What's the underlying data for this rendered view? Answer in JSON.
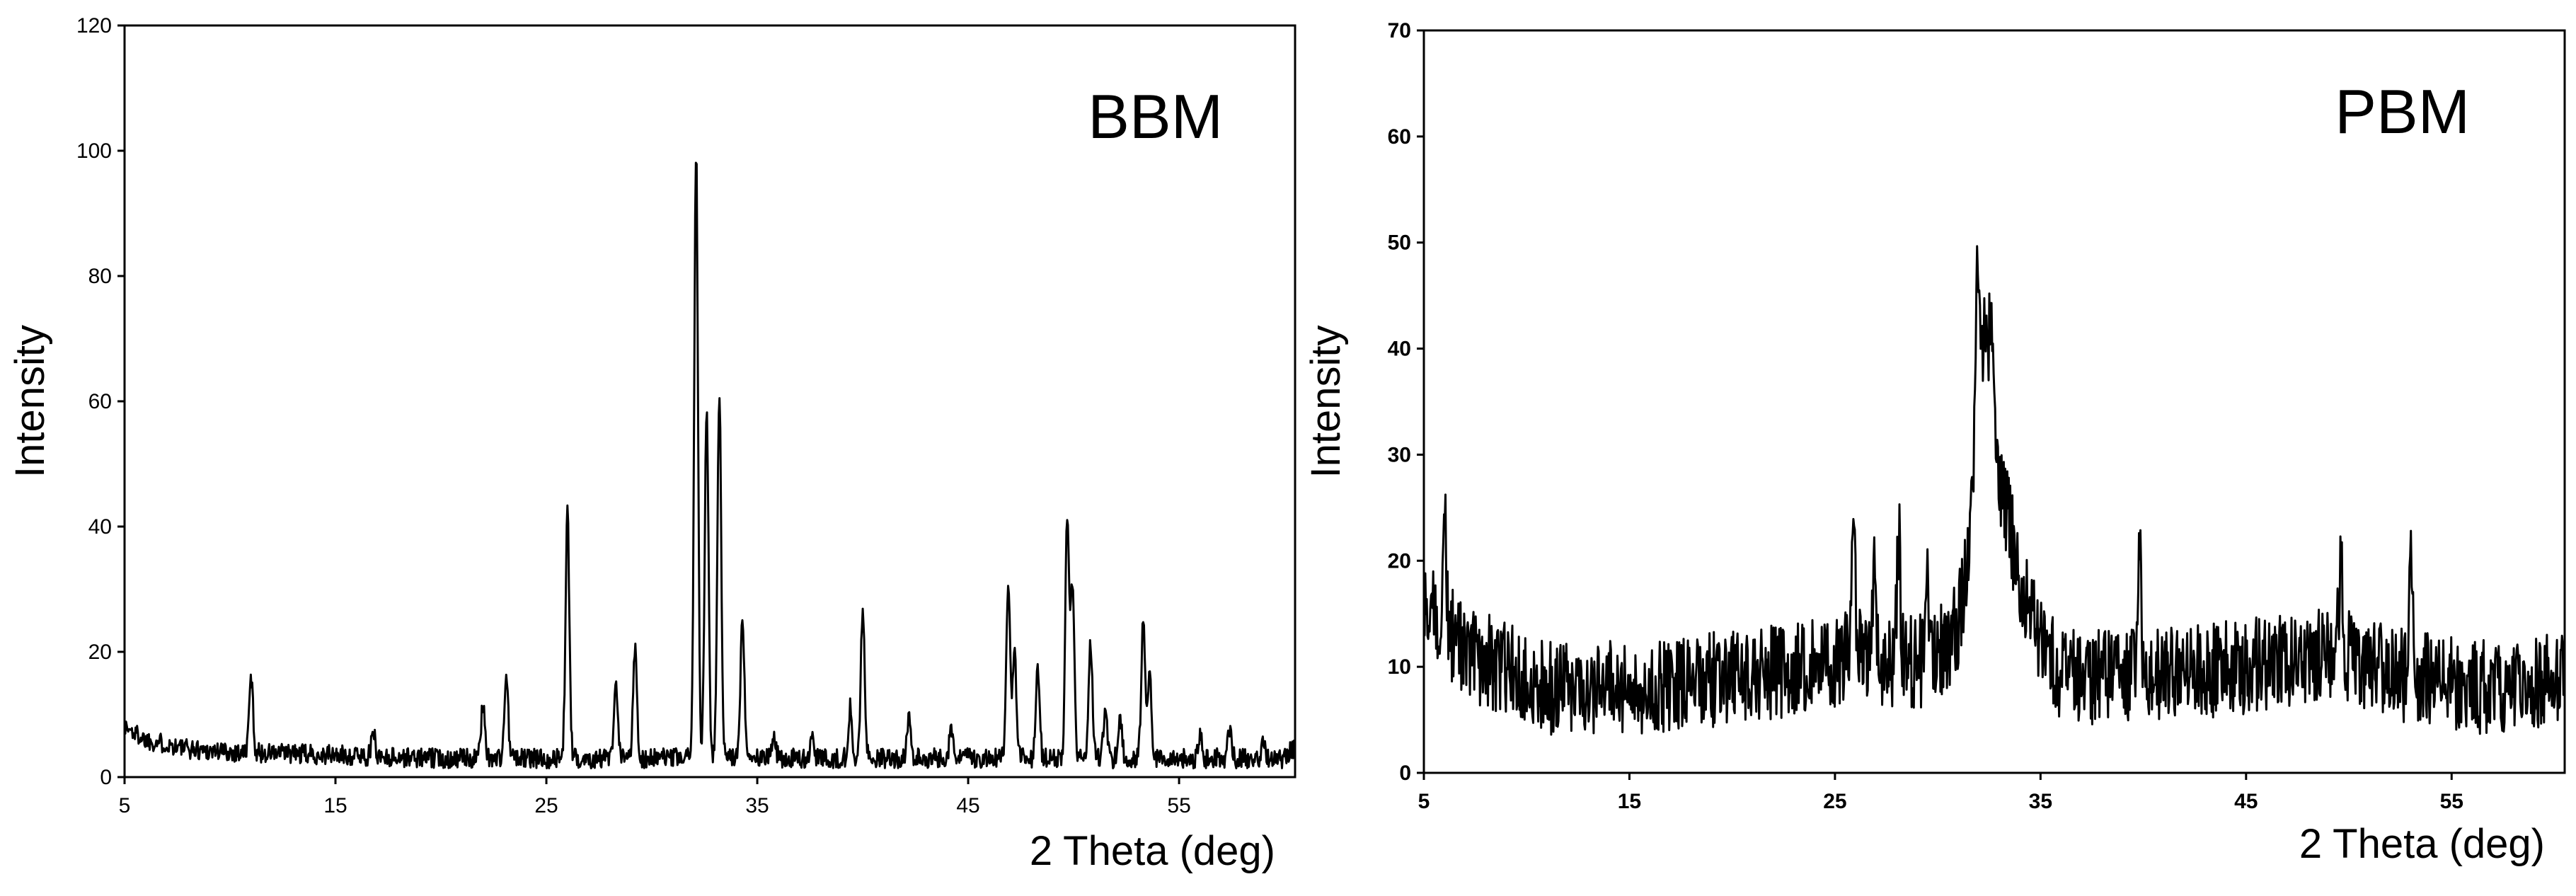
{
  "chart_data": [
    {
      "type": "line",
      "title": "BBM",
      "xlabel": "2 Theta (deg)",
      "ylabel": "Intensity",
      "xlim": [
        5,
        60.5
      ],
      "ylim": [
        0,
        120
      ],
      "x_ticks": [
        "5",
        "15",
        "25",
        "35",
        "45",
        "55"
      ],
      "y_ticks": [
        "0",
        "20",
        "40",
        "60",
        "80",
        "100",
        "120"
      ],
      "grid": false,
      "line_color": "#000000",
      "baseline": [
        [
          5,
          8
        ],
        [
          6,
          6
        ],
        [
          8,
          4.5
        ],
        [
          10,
          4
        ],
        [
          15,
          3.5
        ],
        [
          20,
          3
        ],
        [
          25,
          3
        ],
        [
          30,
          3
        ],
        [
          35,
          3
        ],
        [
          40,
          3
        ],
        [
          45,
          3
        ],
        [
          50,
          3
        ],
        [
          55,
          3
        ],
        [
          60,
          3
        ],
        [
          60.5,
          5
        ]
      ],
      "noise": 1.6,
      "peaks": [
        {
          "x": 11.0,
          "y": 16
        },
        {
          "x": 16.8,
          "y": 7
        },
        {
          "x": 22.0,
          "y": 12
        },
        {
          "x": 23.1,
          "y": 16
        },
        {
          "x": 26.0,
          "y": 42
        },
        {
          "x": 28.3,
          "y": 14
        },
        {
          "x": 29.2,
          "y": 21
        },
        {
          "x": 32.1,
          "y": 100
        },
        {
          "x": 32.6,
          "y": 59
        },
        {
          "x": 33.2,
          "y": 61
        },
        {
          "x": 34.3,
          "y": 26
        },
        {
          "x": 35.8,
          "y": 6
        },
        {
          "x": 37.6,
          "y": 6
        },
        {
          "x": 39.4,
          "y": 11
        },
        {
          "x": 40.0,
          "y": 27
        },
        {
          "x": 42.2,
          "y": 9
        },
        {
          "x": 44.2,
          "y": 8
        },
        {
          "x": 46.9,
          "y": 30
        },
        {
          "x": 47.2,
          "y": 20
        },
        {
          "x": 48.3,
          "y": 17
        },
        {
          "x": 49.7,
          "y": 42
        },
        {
          "x": 49.95,
          "y": 31
        },
        {
          "x": 50.8,
          "y": 21
        },
        {
          "x": 51.5,
          "y": 11
        },
        {
          "x": 52.2,
          "y": 9
        },
        {
          "x": 53.3,
          "y": 26
        },
        {
          "x": 53.6,
          "y": 17
        },
        {
          "x": 56.0,
          "y": 7
        },
        {
          "x": 57.4,
          "y": 8
        },
        {
          "x": 59.0,
          "y": 6
        }
      ]
    },
    {
      "type": "line",
      "title": "PBM",
      "xlabel": "2 Theta (deg)",
      "ylabel": "Intensity",
      "xlim": [
        5,
        60.5
      ],
      "ylim": [
        0,
        70
      ],
      "x_ticks": [
        "5",
        "15",
        "25",
        "35",
        "45",
        "55"
      ],
      "y_ticks": [
        "0",
        "10",
        "20",
        "30",
        "40",
        "50",
        "60",
        "70"
      ],
      "grid": false,
      "line_color": "#000000",
      "baseline": [
        [
          5,
          15
        ],
        [
          6,
          14
        ],
        [
          7,
          11
        ],
        [
          9,
          10
        ],
        [
          11,
          8
        ],
        [
          15,
          8
        ],
        [
          20,
          9
        ],
        [
          24,
          10
        ],
        [
          26,
          11
        ],
        [
          28,
          10
        ],
        [
          30,
          11
        ],
        [
          31,
          14
        ],
        [
          31.6,
          22
        ],
        [
          32.0,
          38
        ],
        [
          32.5,
          36
        ],
        [
          33.0,
          28
        ],
        [
          33.6,
          22
        ],
        [
          34.2,
          17
        ],
        [
          35.0,
          12
        ],
        [
          36,
          9
        ],
        [
          40,
          9
        ],
        [
          45,
          10
        ],
        [
          48,
          11
        ],
        [
          50,
          11
        ],
        [
          53,
          9
        ],
        [
          56,
          8
        ],
        [
          60.5,
          9
        ]
      ],
      "noise": 4.5,
      "peaks": [
        {
          "x": 6.0,
          "y": 24
        },
        {
          "x": 25.9,
          "y": 24
        },
        {
          "x": 26.9,
          "y": 20
        },
        {
          "x": 28.1,
          "y": 22
        },
        {
          "x": 29.5,
          "y": 19
        },
        {
          "x": 31.9,
          "y": 45
        },
        {
          "x": 32.3,
          "y": 44
        },
        {
          "x": 32.6,
          "y": 44
        },
        {
          "x": 39.8,
          "y": 21
        },
        {
          "x": 49.6,
          "y": 19
        },
        {
          "x": 53.0,
          "y": 20
        }
      ]
    }
  ]
}
